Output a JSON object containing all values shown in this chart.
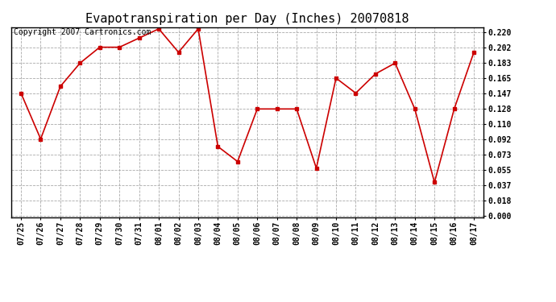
{
  "title": "Evapotranspiration per Day (Inches) 20070818",
  "copyright": "Copyright 2007 Cartronics.com",
  "dates": [
    "07/25",
    "07/26",
    "07/27",
    "07/28",
    "07/29",
    "07/30",
    "07/31",
    "08/01",
    "08/02",
    "08/03",
    "08/04",
    "08/05",
    "08/06",
    "08/07",
    "08/08",
    "08/09",
    "08/10",
    "08/11",
    "08/12",
    "08/13",
    "08/14",
    "08/15",
    "08/16",
    "08/17"
  ],
  "values": [
    0.147,
    0.092,
    0.155,
    0.183,
    0.202,
    0.202,
    0.213,
    0.224,
    0.196,
    0.224,
    0.083,
    0.065,
    0.128,
    0.128,
    0.128,
    0.057,
    0.165,
    0.147,
    0.17,
    0.183,
    0.128,
    0.04,
    0.128,
    0.196
  ],
  "line_color": "#cc0000",
  "marker": "s",
  "marker_size": 3,
  "yticks": [
    0.0,
    0.018,
    0.037,
    0.055,
    0.073,
    0.092,
    0.11,
    0.128,
    0.147,
    0.165,
    0.183,
    0.202,
    0.22
  ],
  "background_color": "#ffffff",
  "grid_color": "#aaaaaa",
  "title_fontsize": 11,
  "tick_fontsize": 7,
  "copyright_fontsize": 7
}
